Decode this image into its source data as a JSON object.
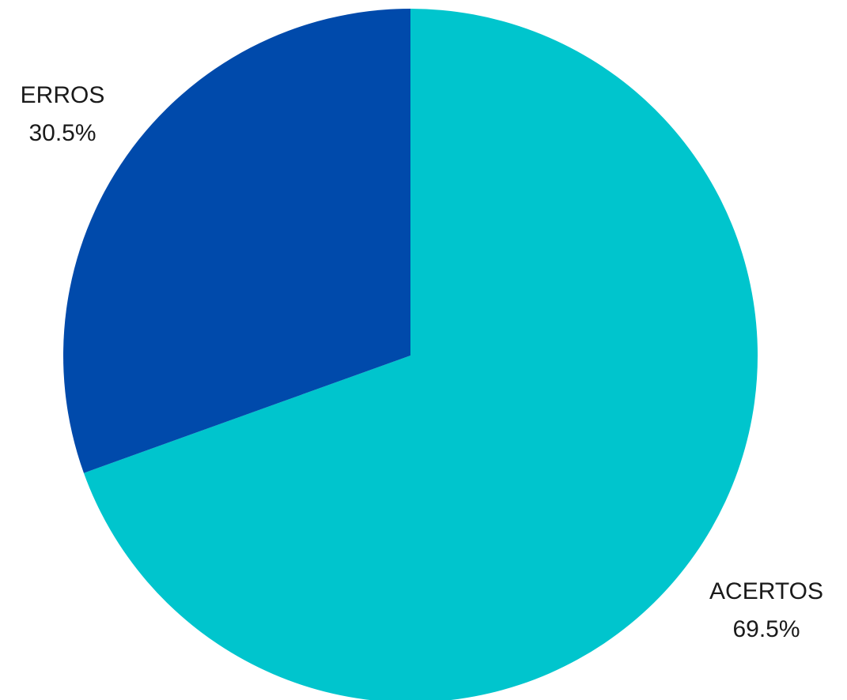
{
  "chart_data": {
    "type": "pie",
    "title": "",
    "series": [
      {
        "slices": [
          {
            "label": "ACERTOS",
            "value": 69.5,
            "value_label": "69.5%",
            "color": "#00c5cd"
          },
          {
            "label": "ERROS",
            "value": 30.5,
            "value_label": "30.5%",
            "color": "#004aab"
          }
        ]
      }
    ],
    "start_angle_deg": 0,
    "direction": "clockwise",
    "labels_outside": true
  }
}
